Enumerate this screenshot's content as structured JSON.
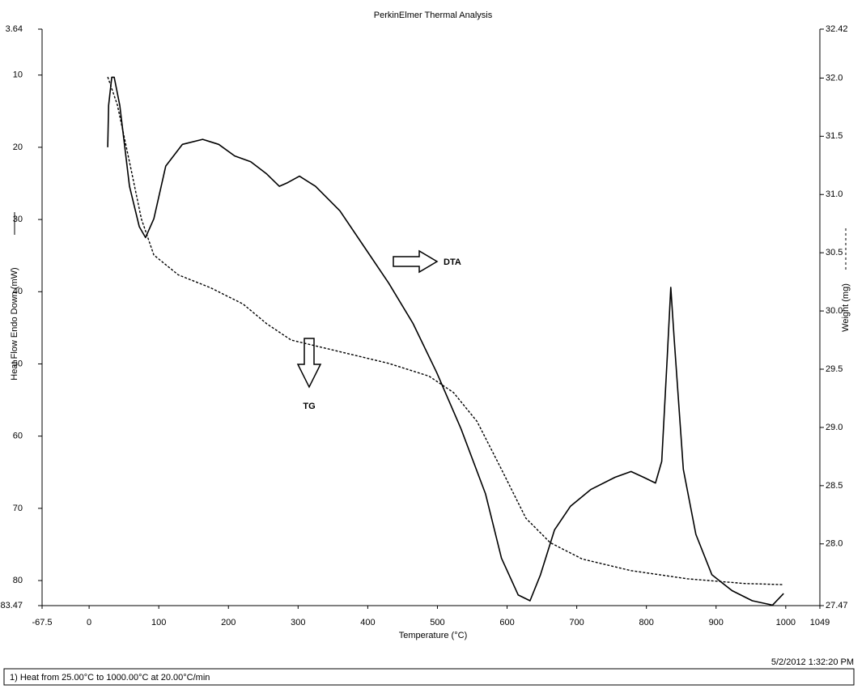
{
  "chart_data": {
    "type": "line",
    "title": "PerkinElmer Thermal Analysis",
    "x_label": "Temperature (°C)",
    "y_label": "Heat Flow Endo Down (mW)",
    "y2_label": "Weight (mg)",
    "timestamp": "5/2/2012 1:32:20 PM",
    "method": "1)  Heat from 25.00°C to 1000.00°C at 20.00°C/min",
    "xlim": [
      -67.5,
      1049
    ],
    "xticks": [
      -67.5,
      0,
      100,
      200,
      300,
      400,
      500,
      600,
      700,
      800,
      900,
      1000,
      1049
    ],
    "ylim": [
      83.47,
      3.64
    ],
    "yticks": [
      3.64,
      10,
      20,
      30,
      40,
      50,
      60,
      70,
      80,
      83.47
    ],
    "y2lim": [
      27.47,
      32.42
    ],
    "y2ticks": [
      27.47,
      {
        "value": 28,
        "label": "28.0"
      },
      28.5,
      {
        "value": 29,
        "label": "29.0"
      },
      29.5,
      {
        "value": 30,
        "label": "30.0"
      },
      30.5,
      {
        "value": 31,
        "label": "31.0"
      },
      31.5,
      {
        "value": 32,
        "label": "32.0"
      },
      32.42
    ],
    "grid": false,
    "series": [
      {
        "name": "DTA",
        "color": "#000000",
        "dash": false,
        "x": [
          26.7,
          28,
          32.5,
          36,
          44,
          58,
          72,
          81,
          93,
          110,
          134,
          163,
          186,
          209,
          232,
          255,
          273,
          285,
          302,
          325,
          360,
          395,
          430,
          465,
          499,
          534,
          569,
          592,
          616,
          633,
          648,
          668,
          691,
          720,
          755,
          778,
          796,
          813,
          822,
          830,
          835,
          840,
          853,
          871,
          894,
          923,
          952,
          981,
          997
        ],
        "values": [
          20.0,
          14.2,
          10.3,
          10.3,
          14.2,
          25.4,
          31.0,
          32.5,
          29.9,
          22.6,
          19.6,
          18.9,
          19.6,
          21.2,
          22.0,
          23.7,
          25.4,
          24.9,
          24.0,
          25.4,
          28.8,
          33.8,
          38.8,
          44.4,
          51.2,
          59.0,
          68.0,
          76.9,
          82.0,
          82.8,
          79.2,
          73.0,
          69.7,
          67.4,
          65.7,
          64.9,
          65.7,
          66.5,
          63.5,
          48.9,
          39.4,
          46.7,
          64.6,
          73.6,
          79.2,
          81.4,
          82.8,
          83.4,
          81.8
        ]
      },
      {
        "name": "TG",
        "color": "#000000",
        "dash": true,
        "axis": "y2",
        "x": [
          26.7,
          40.6,
          58,
          75,
          93,
          128,
          174,
          221,
          255,
          290,
          360,
          430,
          488,
          523,
          557,
          592,
          627,
          662,
          708,
          778,
          859,
          941,
          997
        ],
        "values": [
          32.01,
          31.77,
          31.28,
          30.79,
          30.48,
          30.31,
          30.2,
          30.06,
          29.89,
          29.75,
          29.65,
          29.55,
          29.44,
          29.3,
          29.05,
          28.64,
          28.22,
          28.01,
          27.87,
          27.77,
          27.7,
          27.66,
          27.65
        ]
      }
    ]
  }
}
